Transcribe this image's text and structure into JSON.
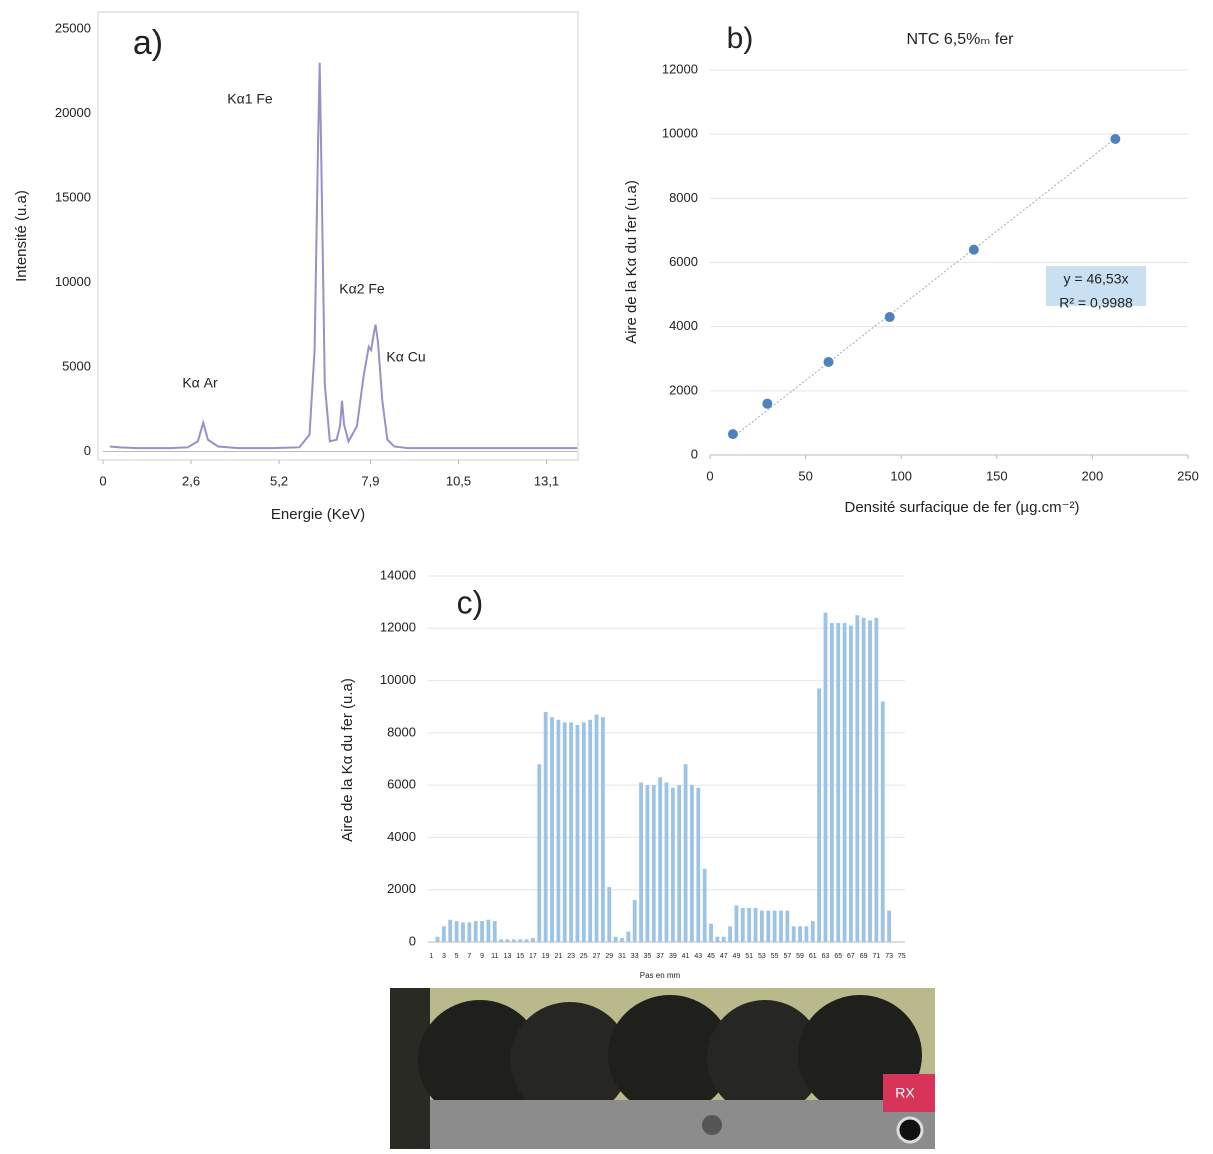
{
  "chart_data": [
    {
      "type": "line",
      "annotations": [
        "a)",
        "Kα1 Fe",
        "Kα2 Fe",
        "Kα Ar",
        "Kα Cu"
      ],
      "x_label": "Energie (KeV)",
      "y_label": "Intensité (u.a)",
      "x": [
        0.2,
        0.5,
        1,
        1.5,
        2,
        2.5,
        2.8,
        2.96,
        3.1,
        3.4,
        4,
        5,
        5.8,
        6.1,
        6.25,
        6.35,
        6.4,
        6.45,
        6.55,
        6.7,
        6.9,
        7.0,
        7.06,
        7.12,
        7.25,
        7.5,
        7.7,
        7.85,
        7.92,
        8.0,
        8.05,
        8.12,
        8.25,
        8.4,
        8.6,
        9,
        10,
        11,
        12,
        13,
        14
      ],
      "values": [
        300,
        250,
        200,
        200,
        200,
        250,
        600,
        1700,
        700,
        300,
        200,
        200,
        250,
        1000,
        6000,
        18000,
        23000,
        17000,
        4000,
        600,
        700,
        1500,
        3000,
        1600,
        600,
        1500,
        4500,
        6200,
        6000,
        7000,
        7500,
        6500,
        3000,
        700,
        300,
        200,
        200,
        200,
        200,
        200,
        200
      ],
      "color": "#9a8fc9",
      "xlim": [
        0,
        14
      ],
      "ylim": [
        -500,
        26000
      ],
      "xticks": [
        0,
        {
          "value": 2.6,
          "label": "2,6"
        },
        {
          "value": 5.2,
          "label": "5,2"
        },
        {
          "value": 7.9,
          "label": "7,9"
        },
        {
          "value": 10.5,
          "label": "10,5"
        },
        {
          "value": 13.1,
          "label": "13,1"
        }
      ],
      "yticks": [
        0,
        5000,
        10000,
        15000,
        20000,
        25000
      ],
      "grid": false
    },
    {
      "type": "scatter",
      "title": "NTC 6,5%ₘ fer",
      "annotations": [
        "b)",
        "y = 46,53x",
        "R² = 0,9988"
      ],
      "x_label": "Densité surfacique de fer (µg.cm⁻²)",
      "y_label": "Aire de la Kα du fer (u.a)",
      "x": [
        12,
        30,
        62,
        94,
        138,
        212
      ],
      "values": [
        650,
        1600,
        2900,
        4300,
        6400,
        9850
      ],
      "color": "#4f81bd",
      "trendline_slope": 46.53,
      "xlim": [
        0,
        250
      ],
      "ylim": [
        0,
        12000
      ],
      "xticks": [
        0,
        50,
        100,
        150,
        200,
        250
      ],
      "yticks": [
        0,
        2000,
        4000,
        6000,
        8000,
        10000,
        12000
      ],
      "grid": true
    },
    {
      "type": "bar",
      "annotations": [
        "c)"
      ],
      "x_label": "Pas en mm",
      "y_label": "Aire de la Kα du fer (u.a)",
      "categories": [
        "1",
        null,
        "3",
        null,
        "5",
        null,
        "7",
        null,
        "9",
        null,
        "11",
        null,
        "13",
        null,
        "15",
        null,
        "17",
        null,
        "19",
        null,
        "21",
        null,
        "23",
        null,
        "25",
        null,
        "27",
        null,
        "29",
        null,
        "31",
        null,
        "33",
        null,
        "35",
        null,
        "37",
        null,
        "39",
        null,
        "41",
        null,
        "43",
        null,
        "45",
        null,
        "47",
        null,
        "49",
        null,
        "51",
        null,
        "53",
        null,
        "55",
        null,
        "57",
        null,
        "59",
        null,
        "61",
        null,
        "63",
        null,
        "65",
        null,
        "67",
        null,
        "69",
        null,
        "71",
        null,
        "73",
        null,
        "75"
      ],
      "values": [
        0,
        200,
        600,
        850,
        800,
        750,
        750,
        800,
        800,
        850,
        800,
        100,
        100,
        100,
        100,
        100,
        150,
        6800,
        8800,
        8600,
        8500,
        8400,
        8400,
        8300,
        8400,
        8500,
        8700,
        8600,
        2100,
        200,
        150,
        400,
        1600,
        6100,
        6000,
        6000,
        6300,
        6100,
        5900,
        6000,
        6800,
        6000,
        5900,
        2800,
        700,
        200,
        200,
        600,
        1400,
        1300,
        1300,
        1300,
        1200,
        1200,
        1200,
        1200,
        1200,
        600,
        600,
        600,
        800,
        9700,
        12600,
        12200,
        12200,
        12200,
        12100,
        12500,
        12400,
        12300,
        12400,
        9200,
        1200,
        0,
        0
      ],
      "color": "#9dc3e6",
      "ylim": [
        0,
        14000
      ],
      "yticks": [
        0,
        2000,
        4000,
        6000,
        8000,
        10000,
        12000,
        14000
      ],
      "grid": true
    }
  ],
  "photo_label": "RX"
}
